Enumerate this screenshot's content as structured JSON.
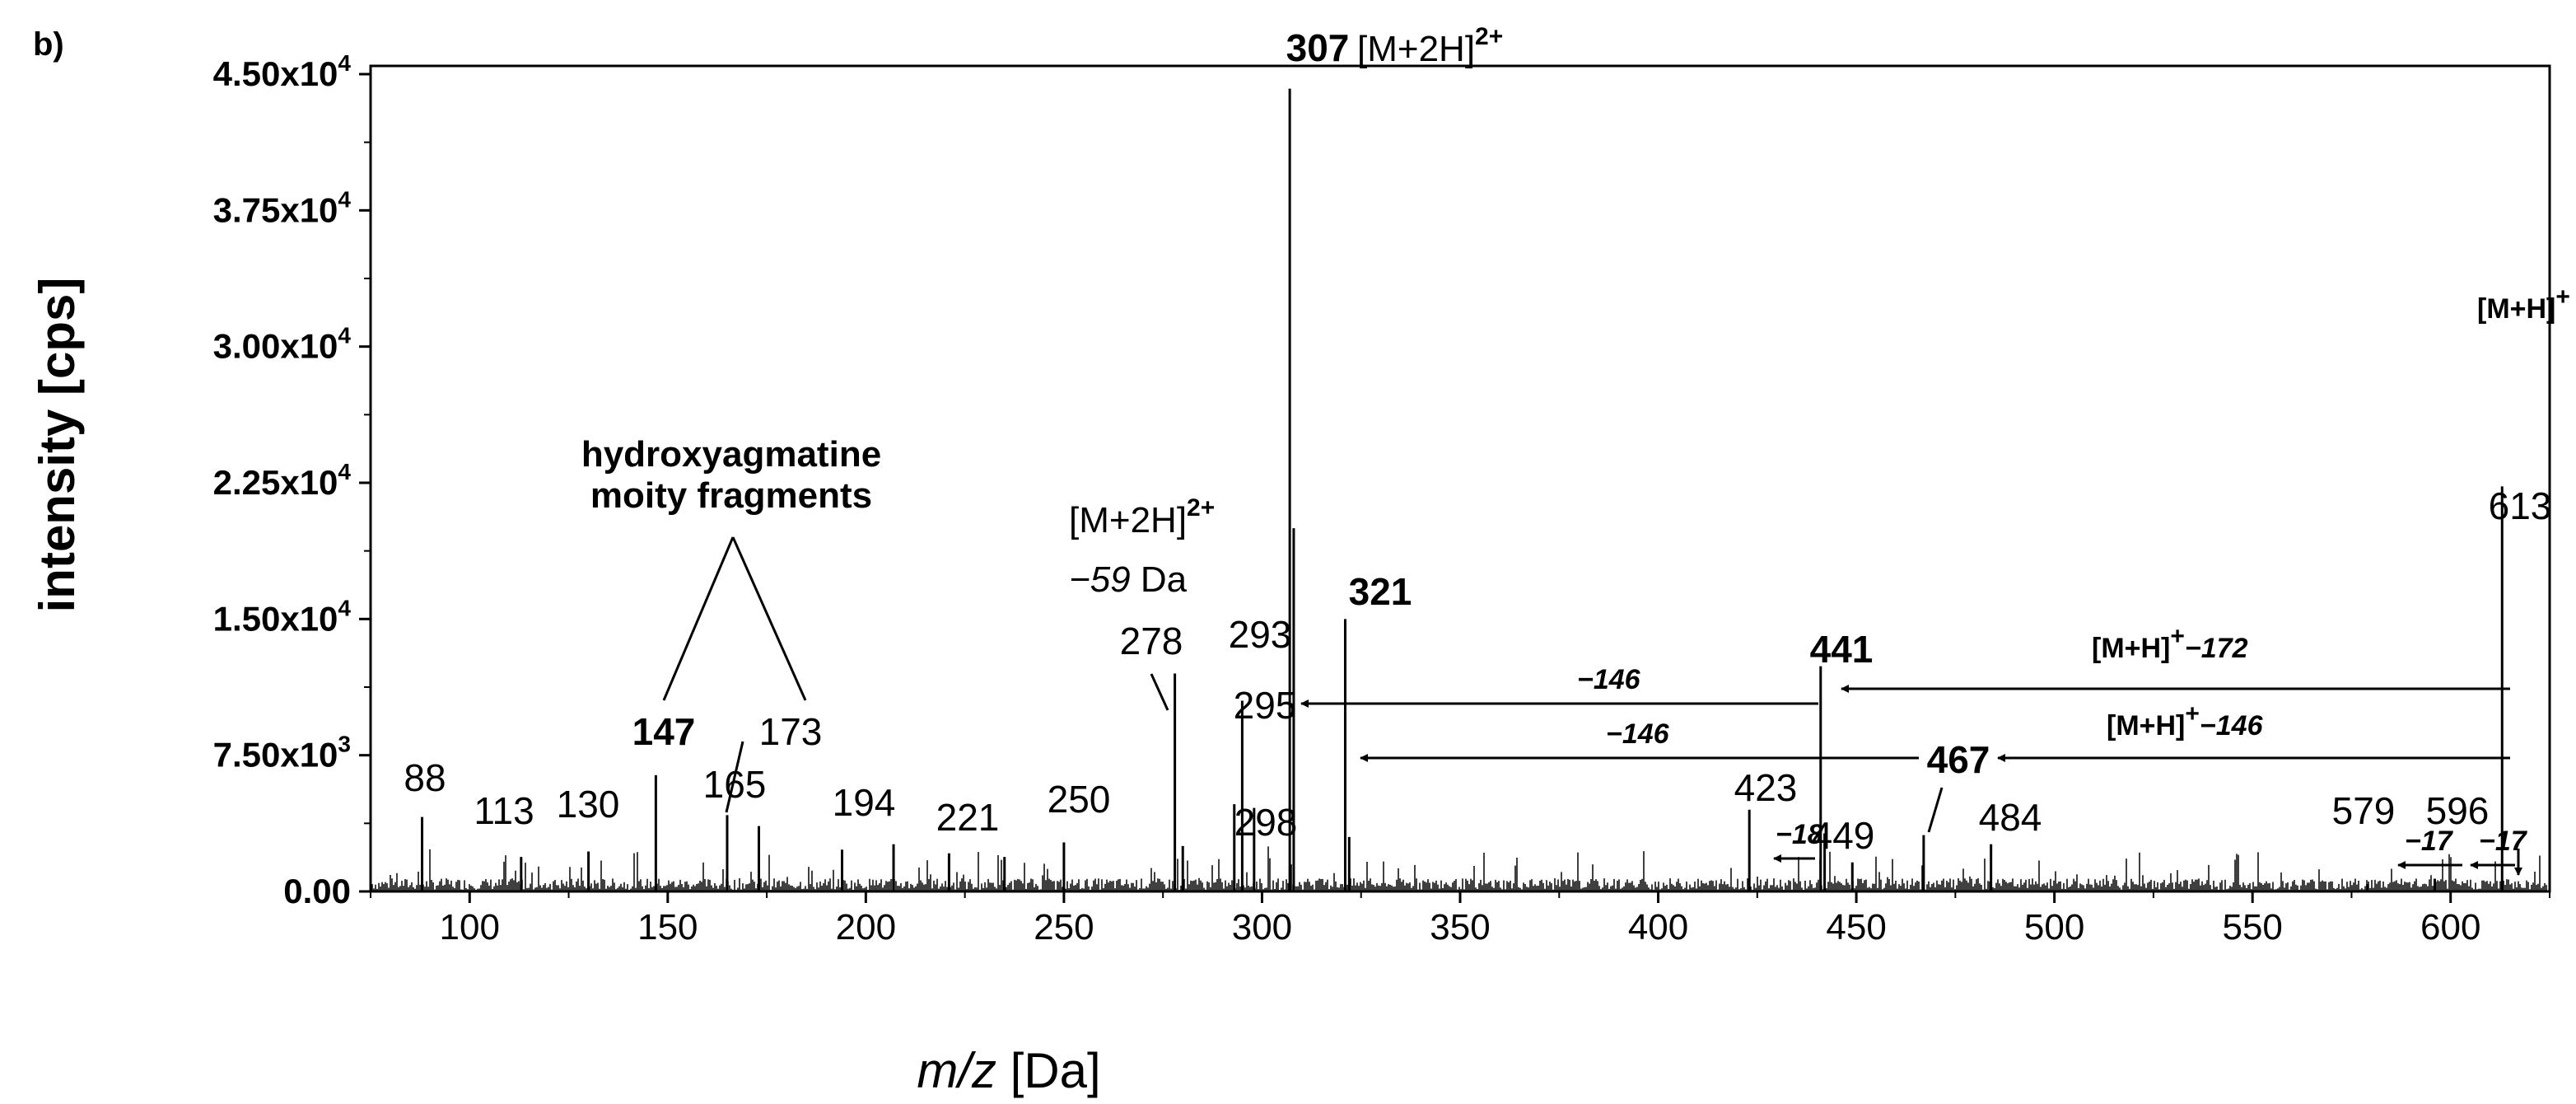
{
  "panel_label": "b)",
  "chart_data": {
    "type": "bar",
    "xlabel_italic": "m/z",
    "xlabel_rest": " [Da]",
    "ylabel": "intensity [cps]",
    "xlim": [
      75,
      625
    ],
    "ylim": [
      0,
      45000
    ],
    "x_ticks": [
      100,
      150,
      200,
      250,
      300,
      350,
      400,
      450,
      500,
      550,
      600
    ],
    "y_ticks": [
      {
        "value": 0,
        "label": "0.00"
      },
      {
        "value": 7500,
        "label": "7.50x10",
        "exp": "3"
      },
      {
        "value": 15000,
        "label": "1.50x10",
        "exp": "4"
      },
      {
        "value": 22500,
        "label": "2.25x10",
        "exp": "4"
      },
      {
        "value": 30000,
        "label": "3.00x10",
        "exp": "4"
      },
      {
        "value": 37500,
        "label": "3.75x10",
        "exp": "4"
      },
      {
        "value": 45000,
        "label": "4.50x10",
        "exp": "4"
      }
    ],
    "peaks": [
      {
        "x": 88,
        "y": 4100,
        "label": "88"
      },
      {
        "x": 113,
        "y": 1900,
        "label": "113"
      },
      {
        "x": 130,
        "y": 2200,
        "label": "130"
      },
      {
        "x": 147,
        "y": 6400,
        "label": "147"
      },
      {
        "x": 165,
        "y": 4200,
        "label": "165"
      },
      {
        "x": 173,
        "y": 3600,
        "label": "173"
      },
      {
        "x": 194,
        "y": 2300,
        "label": "194"
      },
      {
        "x": 207,
        "y": 2600
      },
      {
        "x": 221,
        "y": 2100,
        "label": "221"
      },
      {
        "x": 235,
        "y": 1900
      },
      {
        "x": 250,
        "y": 2700,
        "label": "250"
      },
      {
        "x": 278,
        "y": 12000,
        "label": "278"
      },
      {
        "x": 280,
        "y": 2500
      },
      {
        "x": 293,
        "y": 4800,
        "label": "293"
      },
      {
        "x": 295,
        "y": 10500,
        "label": "295"
      },
      {
        "x": 298,
        "y": 4600,
        "label": "298"
      },
      {
        "x": 307,
        "y": 44200,
        "label": "307"
      },
      {
        "x": 308,
        "y": 20000
      },
      {
        "x": 321,
        "y": 15000,
        "label": "321"
      },
      {
        "x": 322,
        "y": 3000
      },
      {
        "x": 423,
        "y": 4500,
        "label": "423"
      },
      {
        "x": 441,
        "y": 12400,
        "label": "441"
      },
      {
        "x": 442,
        "y": 3200
      },
      {
        "x": 449,
        "y": 1600,
        "label": "449"
      },
      {
        "x": 467,
        "y": 3100,
        "label": "467"
      },
      {
        "x": 484,
        "y": 2600,
        "label": "484"
      },
      {
        "x": 579,
        "y": 400,
        "label": "579"
      },
      {
        "x": 596,
        "y": 700,
        "label": "596"
      },
      {
        "x": 613,
        "y": 22300,
        "label": "613"
      }
    ]
  },
  "annotations": {
    "hydroxy_line1": "hydroxyagmatine",
    "hydroxy_line2": "moity fragments",
    "m2h_prefix": "[M+2H]",
    "charge_2plus": "2+",
    "minus59_num": "−59",
    "minus59_unit": " Da",
    "mh_prefix": "[M+H]",
    "charge_plus": "+",
    "mh_minus172_tail": "−172",
    "mh_minus146_tail": "−146",
    "minus146_a": "−146",
    "minus146_b": "−146",
    "minus18": "−18",
    "minus17_a": "−17",
    "minus17_b": "−17"
  }
}
